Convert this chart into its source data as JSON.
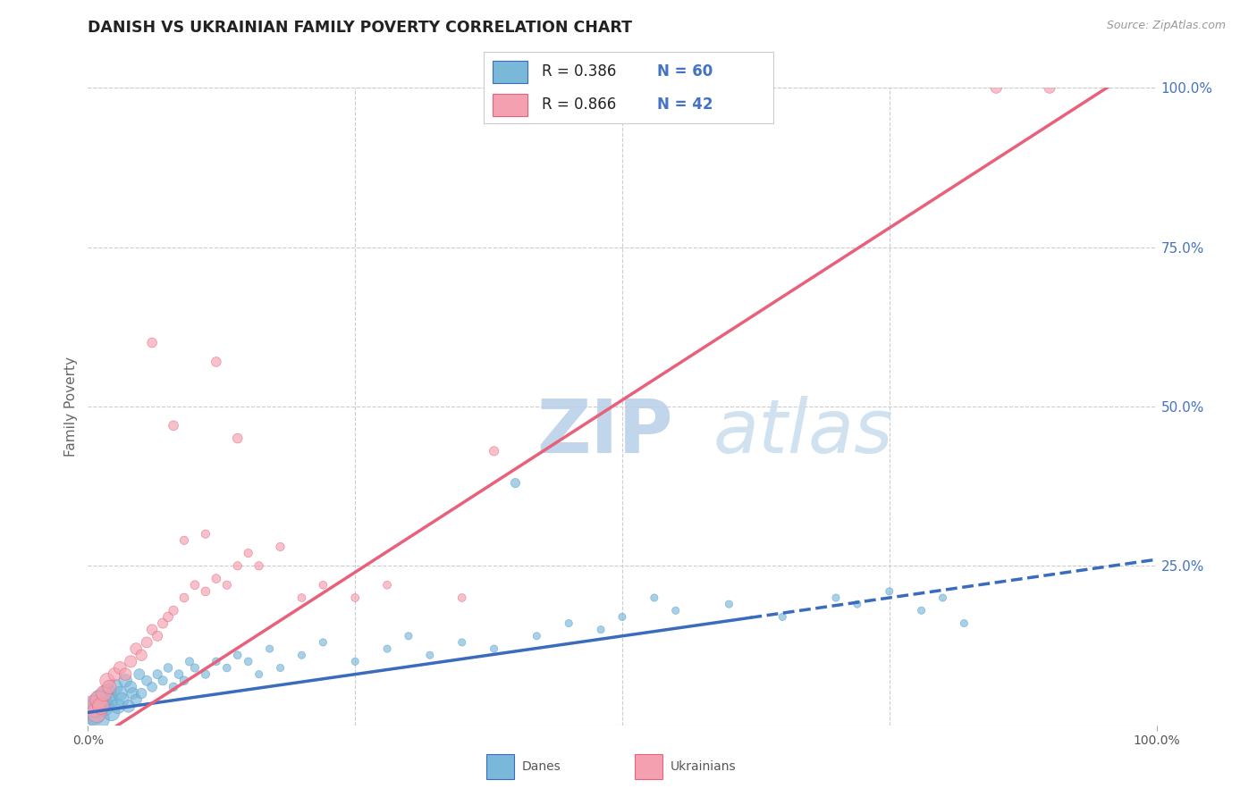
{
  "title": "DANISH VS UKRAINIAN FAMILY POVERTY CORRELATION CHART",
  "source": "Source: ZipAtlas.com",
  "ylabel": "Family Poverty",
  "xlim": [
    0,
    1
  ],
  "ylim": [
    0,
    1.0
  ],
  "color_blue": "#7ab8d9",
  "color_blue_border": "#5a9dc8",
  "color_pink": "#f4a0b0",
  "color_pink_border": "#e8607a",
  "trendline_blue": "#3a6bbf",
  "trendline_pink": "#e8607a",
  "trendline_blue_solid_end": 0.62,
  "trendline_blue_slope": 0.24,
  "trendline_blue_intercept": 0.02,
  "trendline_pink_slope": 1.08,
  "trendline_pink_intercept": -0.03,
  "watermark": "ZIPatlas",
  "watermark_color": "#ccdded",
  "background_color": "#ffffff",
  "grid_color": "#cccccc",
  "title_color": "#222222",
  "axis_label_color": "#666666",
  "right_axis_color": "#4472c4",
  "legend_R_blue": "R = 0.386",
  "legend_N_blue": "N = 60",
  "legend_R_pink": "R = 0.866",
  "legend_N_pink": "N = 42",
  "danes_x": [
    0.005,
    0.008,
    0.01,
    0.012,
    0.015,
    0.018,
    0.02,
    0.022,
    0.025,
    0.028,
    0.03,
    0.032,
    0.035,
    0.038,
    0.04,
    0.042,
    0.045,
    0.048,
    0.05,
    0.055,
    0.06,
    0.065,
    0.07,
    0.075,
    0.08,
    0.085,
    0.09,
    0.095,
    0.1,
    0.11,
    0.12,
    0.13,
    0.14,
    0.15,
    0.16,
    0.17,
    0.18,
    0.2,
    0.22,
    0.25,
    0.28,
    0.3,
    0.32,
    0.35,
    0.38,
    0.4,
    0.42,
    0.45,
    0.48,
    0.5,
    0.53,
    0.55,
    0.6,
    0.65,
    0.7,
    0.72,
    0.75,
    0.78,
    0.8,
    0.82
  ],
  "danes_y": [
    0.02,
    0.03,
    0.01,
    0.04,
    0.03,
    0.05,
    0.04,
    0.02,
    0.06,
    0.03,
    0.05,
    0.04,
    0.07,
    0.03,
    0.06,
    0.05,
    0.04,
    0.08,
    0.05,
    0.07,
    0.06,
    0.08,
    0.07,
    0.09,
    0.06,
    0.08,
    0.07,
    0.1,
    0.09,
    0.08,
    0.1,
    0.09,
    0.11,
    0.1,
    0.08,
    0.12,
    0.09,
    0.11,
    0.13,
    0.1,
    0.12,
    0.14,
    0.11,
    0.13,
    0.12,
    0.38,
    0.14,
    0.16,
    0.15,
    0.17,
    0.2,
    0.18,
    0.19,
    0.17,
    0.2,
    0.19,
    0.21,
    0.18,
    0.2,
    0.16
  ],
  "danes_sizes": [
    400,
    350,
    300,
    280,
    250,
    220,
    200,
    180,
    160,
    140,
    130,
    120,
    110,
    100,
    90,
    85,
    80,
    75,
    70,
    65,
    60,
    55,
    55,
    50,
    50,
    50,
    50,
    45,
    45,
    45,
    40,
    40,
    40,
    40,
    35,
    35,
    35,
    35,
    35,
    35,
    35,
    35,
    35,
    35,
    35,
    55,
    35,
    35,
    35,
    35,
    35,
    35,
    35,
    35,
    35,
    35,
    35,
    35,
    35,
    35
  ],
  "ukr_x": [
    0.005,
    0.008,
    0.01,
    0.012,
    0.015,
    0.018,
    0.02,
    0.025,
    0.03,
    0.035,
    0.04,
    0.045,
    0.05,
    0.055,
    0.06,
    0.065,
    0.07,
    0.075,
    0.08,
    0.09,
    0.1,
    0.11,
    0.12,
    0.13,
    0.14,
    0.15,
    0.16,
    0.18,
    0.2,
    0.22,
    0.25,
    0.28,
    0.35,
    0.38,
    0.14,
    0.12,
    0.08,
    0.06,
    0.09,
    0.11,
    0.85,
    0.9
  ],
  "ukr_y": [
    0.03,
    0.02,
    0.04,
    0.03,
    0.05,
    0.07,
    0.06,
    0.08,
    0.09,
    0.08,
    0.1,
    0.12,
    0.11,
    0.13,
    0.15,
    0.14,
    0.16,
    0.17,
    0.18,
    0.2,
    0.22,
    0.21,
    0.23,
    0.22,
    0.25,
    0.27,
    0.25,
    0.28,
    0.2,
    0.22,
    0.2,
    0.22,
    0.2,
    0.43,
    0.45,
    0.57,
    0.47,
    0.6,
    0.29,
    0.3,
    1.0,
    1.0
  ],
  "ukr_sizes": [
    300,
    250,
    200,
    180,
    160,
    140,
    120,
    110,
    100,
    95,
    90,
    85,
    80,
    75,
    70,
    65,
    65,
    60,
    55,
    50,
    50,
    50,
    50,
    45,
    45,
    45,
    45,
    45,
    40,
    40,
    40,
    40,
    40,
    55,
    60,
    60,
    60,
    60,
    45,
    45,
    80,
    80
  ]
}
